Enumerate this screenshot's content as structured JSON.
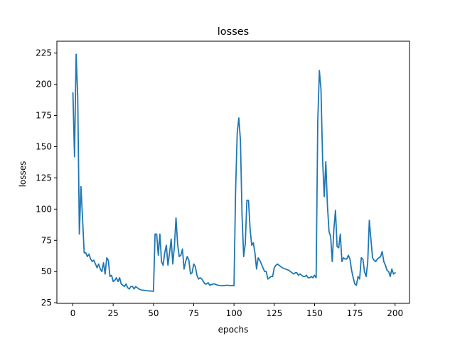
{
  "chart_data": {
    "type": "line",
    "title": "losses",
    "xlabel": "epochs",
    "ylabel": "losses",
    "xlim": [
      -9.95,
      208.95
    ],
    "ylim": [
      24.5,
      234.5
    ],
    "xticks": [
      0,
      25,
      50,
      75,
      100,
      125,
      150,
      175,
      200
    ],
    "yticks": [
      25,
      50,
      75,
      100,
      125,
      150,
      175,
      200,
      225
    ],
    "grid": false,
    "colors": {
      "line": "#1f77b4",
      "axes": "#000000"
    },
    "series": [
      {
        "values": [
          193,
          142,
          224,
          190,
          80,
          118,
          92,
          65,
          65,
          62,
          64,
          60,
          58,
          59,
          56,
          53,
          56,
          52,
          50,
          57,
          48,
          61,
          59,
          46,
          47,
          42,
          43,
          45,
          42,
          45,
          40,
          39,
          38,
          40,
          37,
          36,
          38,
          38,
          36,
          38,
          37,
          36,
          35.5,
          35,
          35,
          34.8,
          34.6,
          34.5,
          34.4,
          34.3,
          34.2,
          80,
          80,
          63,
          80,
          58,
          55,
          65,
          71,
          55,
          65,
          76,
          56,
          70,
          93,
          72,
          62,
          63,
          68,
          52,
          58,
          62,
          59,
          48,
          49,
          56,
          54,
          47,
          44,
          45,
          44,
          42,
          40,
          40,
          41,
          39,
          39.5,
          40,
          40,
          39.5,
          39,
          38.8,
          38.7,
          38.6,
          38.8,
          38.9,
          39,
          38.8,
          38.7,
          38.8,
          38.6,
          115,
          161,
          173,
          155,
          95,
          62,
          72,
          107,
          107,
          84,
          71,
          73,
          65,
          52,
          61,
          59,
          56,
          53,
          50,
          50,
          44,
          45,
          46,
          46,
          53,
          55,
          56,
          55,
          54,
          53,
          52.5,
          52,
          51.5,
          51,
          50,
          49,
          48,
          49,
          49,
          47,
          48,
          47,
          46,
          46,
          47,
          45,
          45,
          46,
          45,
          47,
          45,
          170,
          211,
          196,
          140,
          110,
          138,
          103,
          82,
          78,
          58,
          84,
          99,
          70,
          69,
          80,
          58,
          61,
          60,
          60,
          63,
          60,
          51,
          45,
          40,
          39,
          46,
          44,
          61,
          60,
          50,
          46,
          57,
          91,
          76,
          61,
          59,
          58,
          60,
          61,
          62,
          66,
          58,
          55,
          51,
          50,
          46,
          52,
          48,
          49
        ]
      }
    ]
  }
}
